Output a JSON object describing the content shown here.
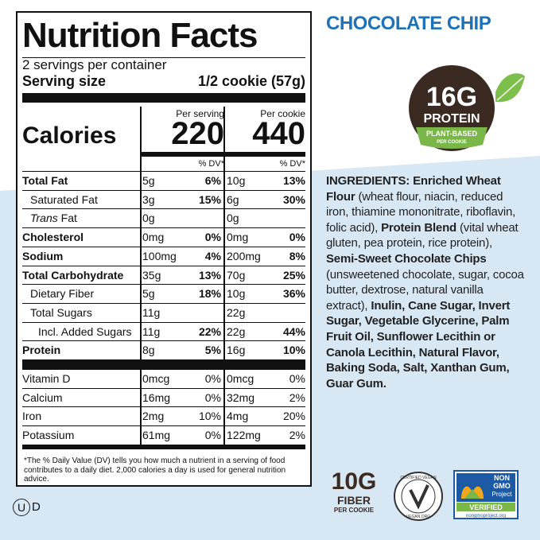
{
  "header": {
    "title": "CHOCOLATE CHIP"
  },
  "nutrition_facts": {
    "title": "Nutrition Facts",
    "servings": "2 servings per container",
    "serving_size_label": "Serving size",
    "serving_size": "1/2 cookie (57g)",
    "columns": [
      "Per serving",
      "Per cookie"
    ],
    "calories_label": "Calories",
    "calories": [
      "220",
      "440"
    ],
    "dv_header": "% DV*",
    "nutrients": [
      {
        "label": "Total Fat",
        "bold": true,
        "indent": 0,
        "values": [
          {
            "amount": "5g",
            "dv": "6%"
          },
          {
            "amount": "10g",
            "dv": "13%"
          }
        ]
      },
      {
        "label": "Saturated Fat",
        "bold": false,
        "indent": 1,
        "values": [
          {
            "amount": "3g",
            "dv": "15%"
          },
          {
            "amount": "6g",
            "dv": "30%"
          }
        ]
      },
      {
        "label_italic": "Trans",
        "label": "Fat",
        "bold": false,
        "indent": 1,
        "values": [
          {
            "amount": "0g"
          },
          {
            "amount": "0g"
          }
        ]
      },
      {
        "label": "Cholesterol",
        "bold": true,
        "indent": 0,
        "values": [
          {
            "amount": "0mg",
            "dv": "0%"
          },
          {
            "amount": "0mg",
            "dv": "0%"
          }
        ]
      },
      {
        "label": "Sodium",
        "bold": true,
        "indent": 0,
        "values": [
          {
            "amount": "100mg",
            "dv": "4%"
          },
          {
            "amount": "200mg",
            "dv": "8%"
          }
        ]
      },
      {
        "label": "Total Carbohydrate",
        "bold": true,
        "indent": 0,
        "values": [
          {
            "amount": "35g",
            "dv": "13%"
          },
          {
            "amount": "70g",
            "dv": "25%"
          }
        ]
      },
      {
        "label": "Dietary Fiber",
        "bold": false,
        "indent": 1,
        "values": [
          {
            "amount": "5g",
            "dv": "18%"
          },
          {
            "amount": "10g",
            "dv": "36%"
          }
        ]
      },
      {
        "label": "Total Sugars",
        "bold": false,
        "indent": 1,
        "values": [
          {
            "amount": "11g"
          },
          {
            "amount": "22g"
          }
        ]
      },
      {
        "label": "Incl. Added Sugars",
        "bold": false,
        "indent": 2,
        "values": [
          {
            "amount": "11g",
            "dv": "22%"
          },
          {
            "amount": "22g",
            "dv": "44%"
          }
        ]
      },
      {
        "label": "Protein",
        "bold": true,
        "indent": 0,
        "values": [
          {
            "amount": "8g",
            "dv": "5%"
          },
          {
            "amount": "16g",
            "dv": "10%"
          }
        ]
      }
    ],
    "vitamins": [
      {
        "label": "Vitamin D",
        "values": [
          {
            "amount": "0mcg",
            "dv": "0%"
          },
          {
            "amount": "0mcg",
            "dv": "0%"
          }
        ]
      },
      {
        "label": "Calcium",
        "values": [
          {
            "amount": "16mg",
            "dv": "0%"
          },
          {
            "amount": "32mg",
            "dv": "2%"
          }
        ]
      },
      {
        "label": "Iron",
        "values": [
          {
            "amount": "2mg",
            "dv": "10%"
          },
          {
            "amount": "4mg",
            "dv": "20%"
          }
        ]
      },
      {
        "label": "Potassium",
        "values": [
          {
            "amount": "61mg",
            "dv": "0%"
          },
          {
            "amount": "122mg",
            "dv": "2%"
          }
        ]
      }
    ],
    "footnote": "*The % Daily Value (DV) tells you how much a nutrient in a serving of food contributes to a daily diet. 2,000 calories a day is used for general nutrition advice."
  },
  "protein_badge": {
    "amount": "16G",
    "label": "PROTEIN",
    "banner": "PLANT-BASED",
    "sub": "PER COOKIE"
  },
  "ingredients": [
    {
      "text": "INGREDIENTS: Enriched Wheat Flour",
      "bold": true
    },
    {
      "text": " (wheat flour, niacin, reduced iron, thiamine mononitrate, riboflavin, folic acid), ",
      "bold": false
    },
    {
      "text": "Protein Blend",
      "bold": true
    },
    {
      "text": " (vital wheat gluten, pea protein, rice protein), ",
      "bold": false
    },
    {
      "text": "Semi-Sweet Chocolate Chips",
      "bold": true
    },
    {
      "text": " (unsweetened chocolate, sugar, cocoa butter, dextrose, natural vanilla extract), ",
      "bold": false
    },
    {
      "text": "Inulin, Cane Sugar, Invert Sugar, Vegetable Glycerine, Palm Fruit Oil, Sunflower Lecithin or Canola Lecithin, Natural Flavor, Baking Soda, Salt, Xanthan Gum, Guar Gum.",
      "bold": true
    }
  ],
  "fiber_badge": {
    "amount": "10G",
    "label": "FIBER",
    "sub": "PER COOKIE"
  },
  "vegan_badge": {
    "top": "CERTIFIED VEGAN",
    "bottom": "VEGAN.ORG"
  },
  "nongmo_badge": {
    "non": "NON",
    "gmo": "GMO",
    "project": "Project",
    "verified": "VERIFIED",
    "url": "nongmoproject.org"
  },
  "kosher": {
    "symbol": "U",
    "mark": "D"
  }
}
